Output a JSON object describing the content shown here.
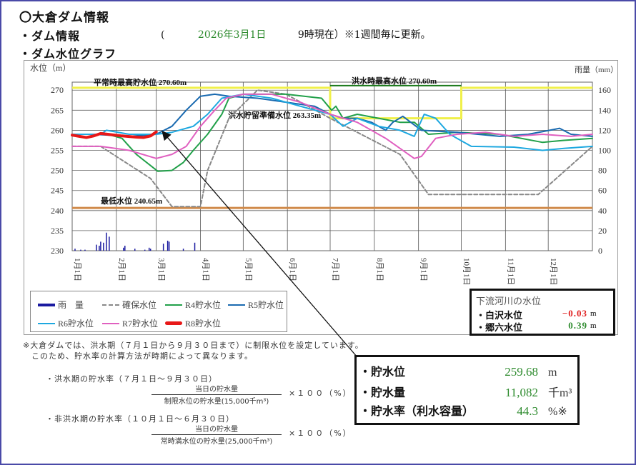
{
  "header": {
    "title": "〇大倉ダム情報",
    "dam_info_label": "・ダム情報",
    "paren_open": "(",
    "date": "2026年3月1日",
    "time_note": "9時現在）※1週間毎に更新。",
    "graph_label": "・ダム水位グラフ"
  },
  "chart_data": {
    "type": "line",
    "title": "ダム水位グラフ",
    "ylabel": "水位（m）",
    "y2label": "雨量（mm）",
    "ylim": [
      230,
      272
    ],
    "y2lim": [
      0,
      168
    ],
    "yticks": [
      230,
      235,
      240,
      245,
      250,
      255,
      260,
      265,
      270
    ],
    "y2ticks": [
      0,
      20,
      40,
      60,
      80,
      100,
      120,
      140,
      160
    ],
    "categories": [
      "1月1日",
      "2月1日",
      "3月1日",
      "4月1日",
      "5月1日",
      "6月1日",
      "7月1日",
      "8月1日",
      "9月1日",
      "10月1日",
      "11月1日",
      "12月1日"
    ],
    "grid": true,
    "annotations": [
      {
        "text": "平常時最高貯水位 270.60m",
        "value": 270.6,
        "color": "#f0f04a"
      },
      {
        "text": "洪水時最高水位 270.60m",
        "value": 270.6,
        "color": "#1a7a1a"
      },
      {
        "text": "洪水貯留準備水位 263.35m",
        "value": 263.35,
        "color": "#f0f04a"
      },
      {
        "text": "最低水位 240.65m",
        "value": 240.65,
        "color": "#d08a4a"
      }
    ],
    "series": [
      {
        "name": "雨　量",
        "type": "bar",
        "axis": "y2",
        "color": "#1a1aa0",
        "x_days": [
          2,
          6,
          9,
          17,
          19,
          20,
          22,
          24,
          26,
          36,
          37,
          44,
          51,
          54,
          55,
          64,
          67,
          68,
          78,
          86
        ],
        "values": [
          2,
          1,
          1,
          6,
          5,
          9,
          8,
          18,
          14,
          3,
          5,
          2,
          1,
          3,
          2,
          7,
          10,
          9,
          2,
          8
        ]
      },
      {
        "name": "確保水位",
        "color": "#888888",
        "dash": true,
        "points": [
          [
            0,
            256
          ],
          [
            20,
            256
          ],
          [
            55,
            248
          ],
          [
            70,
            241
          ],
          [
            90,
            241
          ],
          [
            95,
            250
          ],
          [
            110,
            263
          ],
          [
            130,
            270
          ],
          [
            150,
            269
          ],
          [
            181,
            263
          ],
          [
            230,
            254
          ],
          [
            250,
            244
          ],
          [
            290,
            244
          ],
          [
            327,
            244
          ],
          [
            365,
            256
          ]
        ]
      },
      {
        "name": "R4貯水位",
        "color": "#22a04a",
        "points": [
          [
            0,
            259
          ],
          [
            10,
            259
          ],
          [
            25,
            259
          ],
          [
            35,
            258
          ],
          [
            45,
            254
          ],
          [
            60,
            249.8
          ],
          [
            70,
            250
          ],
          [
            78,
            252
          ],
          [
            85,
            255
          ],
          [
            95,
            259
          ],
          [
            105,
            264
          ],
          [
            110,
            268
          ],
          [
            120,
            269
          ],
          [
            150,
            269
          ],
          [
            175,
            268
          ],
          [
            182,
            265
          ],
          [
            185,
            266
          ],
          [
            190,
            263
          ],
          [
            200,
            264
          ],
          [
            215,
            263
          ],
          [
            230,
            262
          ],
          [
            240,
            262
          ],
          [
            250,
            259
          ],
          [
            270,
            259.5
          ],
          [
            300,
            259
          ],
          [
            330,
            257
          ],
          [
            345,
            257.5
          ],
          [
            365,
            258
          ]
        ]
      },
      {
        "name": "R5貯水位",
        "color": "#1a6ab0",
        "points": [
          [
            0,
            259
          ],
          [
            15,
            259
          ],
          [
            40,
            258.5
          ],
          [
            59,
            259
          ],
          [
            70,
            261
          ],
          [
            80,
            265
          ],
          [
            90,
            268.5
          ],
          [
            100,
            269
          ],
          [
            110,
            268.5
          ],
          [
            130,
            268
          ],
          [
            150,
            267
          ],
          [
            170,
            266
          ],
          [
            181,
            264
          ],
          [
            190,
            263
          ],
          [
            200,
            263
          ],
          [
            210,
            262
          ],
          [
            220,
            260
          ],
          [
            225,
            262
          ],
          [
            232,
            263.5
          ],
          [
            245,
            260
          ],
          [
            270,
            259.5
          ],
          [
            300,
            258.5
          ],
          [
            320,
            259
          ],
          [
            335,
            260
          ],
          [
            342,
            260.5
          ],
          [
            350,
            259
          ],
          [
            365,
            258.5
          ]
        ]
      },
      {
        "name": "R6貯水位",
        "color": "#1ea8e0",
        "points": [
          [
            0,
            259
          ],
          [
            20,
            259
          ],
          [
            24,
            260
          ],
          [
            40,
            259
          ],
          [
            59,
            259
          ],
          [
            70,
            259.5
          ],
          [
            85,
            261
          ],
          [
            95,
            264
          ],
          [
            105,
            268
          ],
          [
            120,
            269
          ],
          [
            140,
            268
          ],
          [
            160,
            266
          ],
          [
            181,
            264
          ],
          [
            190,
            261
          ],
          [
            200,
            263
          ],
          [
            215,
            261
          ],
          [
            230,
            260
          ],
          [
            240,
            258.5
          ],
          [
            247,
            264
          ],
          [
            255,
            263
          ],
          [
            265,
            259
          ],
          [
            280,
            256
          ],
          [
            310,
            255.8
          ],
          [
            330,
            255
          ],
          [
            345,
            255.5
          ],
          [
            365,
            256
          ]
        ]
      },
      {
        "name": "R7貯水位",
        "color": "#e060c0",
        "points": [
          [
            0,
            256
          ],
          [
            20,
            256
          ],
          [
            40,
            255
          ],
          [
            59,
            253
          ],
          [
            70,
            254
          ],
          [
            80,
            256
          ],
          [
            90,
            261
          ],
          [
            100,
            265
          ],
          [
            108,
            268
          ],
          [
            120,
            269
          ],
          [
            140,
            269
          ],
          [
            160,
            267
          ],
          [
            181,
            264
          ],
          [
            200,
            262
          ],
          [
            220,
            258
          ],
          [
            240,
            253
          ],
          [
            245,
            253.5
          ],
          [
            255,
            258
          ],
          [
            270,
            259
          ],
          [
            290,
            259.5
          ],
          [
            310,
            258.5
          ],
          [
            330,
            259
          ],
          [
            350,
            258.5
          ],
          [
            365,
            259
          ]
        ]
      },
      {
        "name": "R8貯水位",
        "color": "#e81818",
        "width": 4,
        "points": [
          [
            0,
            258.8
          ],
          [
            5,
            258.5
          ],
          [
            10,
            258.2
          ],
          [
            15,
            258.6
          ],
          [
            20,
            259.2
          ],
          [
            25,
            259
          ],
          [
            35,
            258.6
          ],
          [
            45,
            258.3
          ],
          [
            50,
            258.2
          ],
          [
            55,
            258.6
          ],
          [
            59,
            259.6
          ]
        ]
      }
    ]
  },
  "legend": {
    "items": [
      {
        "label": "雨　量",
        "color": "#1a1aa0"
      },
      {
        "label": "確保水位",
        "color": "#888888"
      },
      {
        "label": "R4貯水位",
        "color": "#22a04a"
      },
      {
        "label": "R5貯水位",
        "color": "#1a6ab0"
      },
      {
        "label": "R6貯水位",
        "color": "#1ea8e0"
      },
      {
        "label": "R7貯水位",
        "color": "#e060c0"
      },
      {
        "label": "R8貯水位",
        "color": "#e81818"
      }
    ]
  },
  "river": {
    "title": "下流河川の水位",
    "rows": [
      {
        "name": "・白沢水位",
        "value": "−0.03",
        "unit": "m",
        "color": "#e02020"
      },
      {
        "name": "・郷六水位",
        "value": "0.39",
        "unit": "m",
        "color": "#2e8b2e"
      }
    ]
  },
  "notes": {
    "line1": "※大倉ダムでは、洪水期（７月１日から９月３０日まで）に制限水位を設定しています。",
    "line2": "このため、貯水率の計算方法が時期によって異なります。",
    "flood_label": "・洪水期の貯水率（７月１日～９月３０日）",
    "flood_num": "当日の貯水量",
    "flood_den": "制限水位の貯水量(15,000千m³)",
    "nonflood_label": "・非洪水期の貯水率（１０月１日～６月３０日）",
    "nonflood_num": "当日の貯水量",
    "nonflood_den": "常時満水位の貯水量(25,000千m³)",
    "multiplier": "×１００（%）"
  },
  "stats": {
    "rows": [
      {
        "name": "・貯水位",
        "value": "259.68",
        "unit": "m"
      },
      {
        "name": "・貯水量",
        "value": "11,082",
        "unit": "千m³"
      },
      {
        "name": "・貯水率（利水容量）",
        "value": "44.3",
        "unit": "%※"
      }
    ]
  }
}
